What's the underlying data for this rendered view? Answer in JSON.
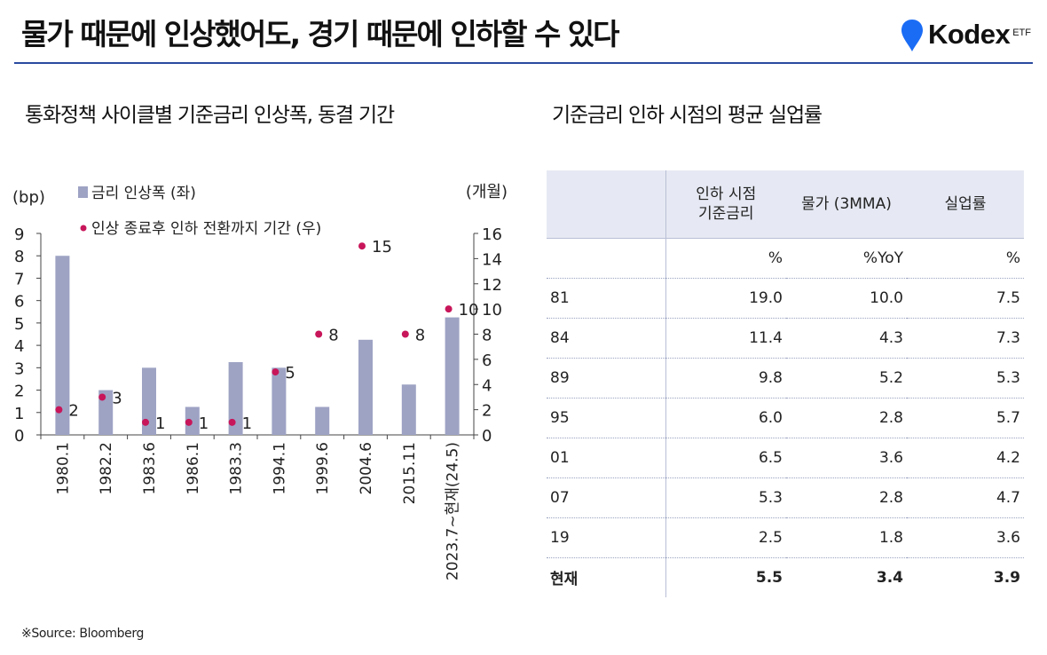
{
  "page_title": "물가 때문에 인상했어도, 경기 때문에 인하할 수 있다",
  "brand": {
    "name": "Kodex",
    "sub": "ETF",
    "pin_color": "#1a6cf5"
  },
  "chart_title": "통화정책 사이클별 기준금리 인상폭, 동결 기간",
  "table_title": "기준금리 인하 시점의 평균 실업률",
  "source": "※Source: Bloomberg",
  "chart_data": {
    "type": "bar",
    "y_left_unit": "(bp)",
    "y_right_unit": "(개월)",
    "categories": [
      "1980.1",
      "1982.2",
      "1983.6",
      "1986.1",
      "1983.3",
      "1994.1",
      "1999.6",
      "2004.6",
      "2015.11",
      "2023.7~현재(24.5)"
    ],
    "series": [
      {
        "name": "금리 인상폭 (좌)",
        "type": "bar",
        "axis": "left",
        "color": "#9ea3c4",
        "values": [
          8.0,
          2.0,
          3.0,
          1.25,
          3.25,
          3.0,
          1.25,
          4.25,
          2.25,
          5.25
        ]
      },
      {
        "name": "인상 종료후 인하 전환까지 기간 (우)",
        "type": "scatter",
        "axis": "right",
        "color": "#c8165a",
        "values": [
          2,
          3,
          1,
          1,
          1,
          5,
          8,
          15,
          8,
          10
        ]
      }
    ],
    "y_left": {
      "min": 0,
      "max": 9,
      "ticks": [
        0,
        1,
        2,
        3,
        4,
        5,
        6,
        7,
        8,
        9
      ]
    },
    "y_right": {
      "min": 0,
      "max": 16,
      "ticks": [
        0,
        2,
        4,
        6,
        8,
        10,
        12,
        14,
        16
      ]
    },
    "grid": false,
    "legend_position": "top-left"
  },
  "table": {
    "headers": [
      "",
      "인하 시점\n기준금리",
      "물가 (3MMA)",
      "실업률"
    ],
    "units": [
      "",
      "%",
      "%YoY",
      "%"
    ],
    "rows": [
      [
        "81",
        "19.0",
        "10.0",
        "7.5"
      ],
      [
        "84",
        "11.4",
        "4.3",
        "7.3"
      ],
      [
        "89",
        "9.8",
        "5.2",
        "5.3"
      ],
      [
        "95",
        "6.0",
        "2.8",
        "5.7"
      ],
      [
        "01",
        "6.5",
        "3.6",
        "4.2"
      ],
      [
        "07",
        "5.3",
        "2.8",
        "4.7"
      ],
      [
        "19",
        "2.5",
        "1.8",
        "3.6"
      ],
      [
        "현재",
        "5.5",
        "3.4",
        "3.9"
      ]
    ]
  }
}
